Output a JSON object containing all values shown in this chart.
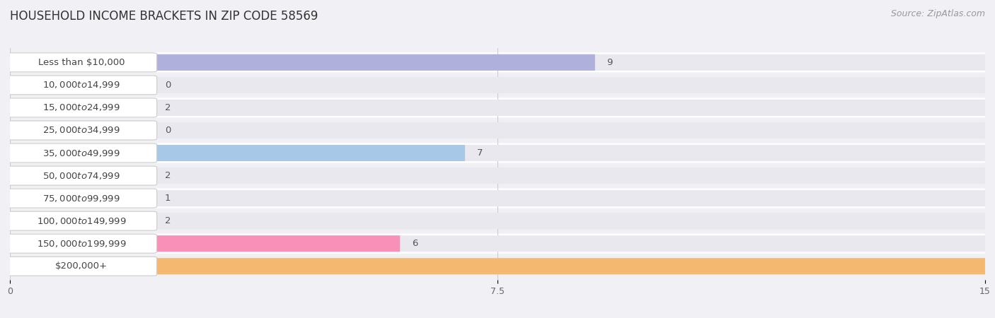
{
  "title": "HOUSEHOLD INCOME BRACKETS IN ZIP CODE 58569",
  "source": "Source: ZipAtlas.com",
  "categories": [
    "Less than $10,000",
    "$10,000 to $14,999",
    "$15,000 to $24,999",
    "$25,000 to $34,999",
    "$35,000 to $49,999",
    "$50,000 to $74,999",
    "$75,000 to $99,999",
    "$100,000 to $149,999",
    "$150,000 to $199,999",
    "$200,000+"
  ],
  "values": [
    9,
    0,
    2,
    0,
    7,
    2,
    1,
    2,
    6,
    15
  ],
  "bar_colors": [
    "#b0b0dc",
    "#f4a0a8",
    "#f5c897",
    "#f4a0a8",
    "#a8c8e8",
    "#c8acd8",
    "#70c8c0",
    "#c0b8e8",
    "#f890b8",
    "#f5b870"
  ],
  "row_bg_colors": [
    "#ffffff",
    "#f0f0f4"
  ],
  "xlim": [
    0,
    15
  ],
  "xticks": [
    0,
    7.5,
    15
  ],
  "background_color": "#f0f0f5",
  "bar_bg_color": "#e8e8ee",
  "title_fontsize": 12,
  "source_fontsize": 9,
  "label_fontsize": 9.5,
  "value_fontsize": 9.5
}
